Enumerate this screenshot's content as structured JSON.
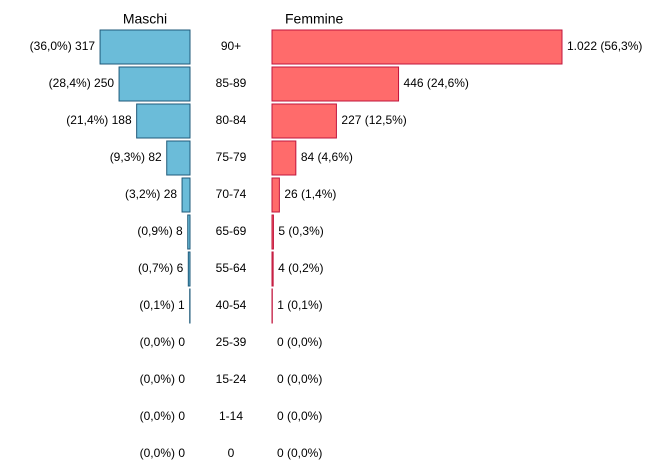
{
  "chart_data": {
    "type": "bar",
    "categories": [
      "90+",
      "85-89",
      "80-84",
      "75-79",
      "70-74",
      "65-69",
      "55-64",
      "40-54",
      "25-39",
      "15-24",
      "1-14",
      "0"
    ],
    "series": [
      {
        "name": "Maschi",
        "color": "#6bbcd9",
        "stroke": "#1f5a7a",
        "values": [
          317,
          250,
          188,
          82,
          28,
          8,
          6,
          1,
          0,
          0,
          0,
          0
        ],
        "value_labels": [
          "(36,0%) 317",
          "(28,4%) 250",
          "(21,4%) 188",
          "(9,3%) 82",
          "(3,2%) 28",
          "(0,9%) 8",
          "(0,7%) 6",
          "(0,1%) 1",
          "(0,0%) 0",
          "(0,0%) 0",
          "(0,0%) 0",
          "(0,0%) 0"
        ]
      },
      {
        "name": "Femmine",
        "color": "#ff6b6b",
        "stroke": "#c0143c",
        "values": [
          1022,
          446,
          227,
          84,
          26,
          5,
          4,
          1,
          0,
          0,
          0,
          0
        ],
        "value_labels": [
          "1.022 (56,3%)",
          "446 (24,6%)",
          "227 (12,5%)",
          "84 (4,6%)",
          "26 (1,4%)",
          "5 (0,3%)",
          "4 (0,2%)",
          "1 (0,1%)",
          "0 (0,0%)",
          "0 (0,0%)",
          "0 (0,0%)",
          "0 (0,0%)"
        ]
      }
    ]
  }
}
